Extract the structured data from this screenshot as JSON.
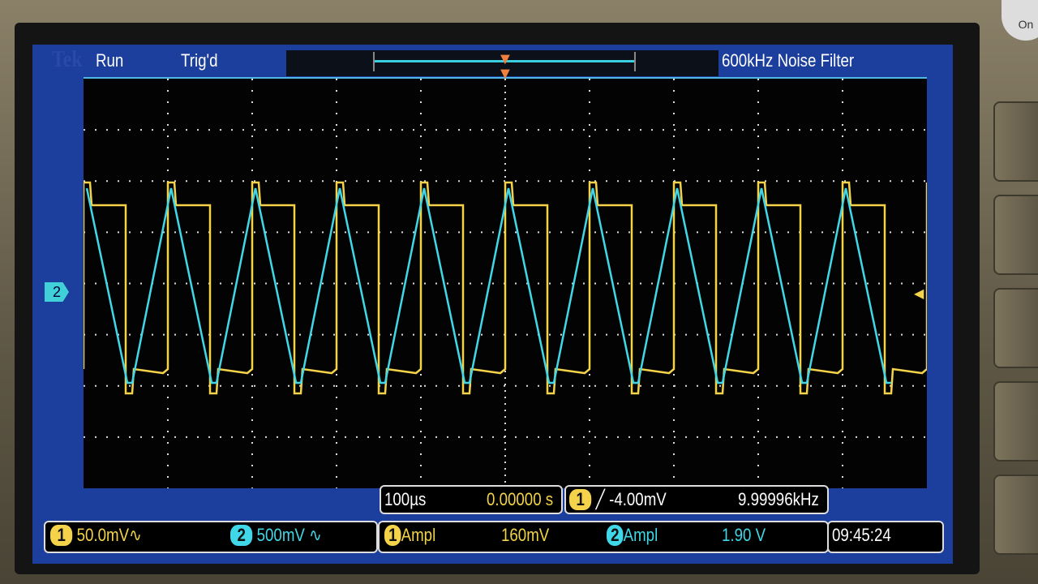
{
  "header": {
    "brand": "Tek",
    "run_state": "Run",
    "trigger_state": "Trig'd",
    "filter": "600kHz  Noise Filter"
  },
  "channels": [
    {
      "id": "1",
      "scale": "50.0mV",
      "coupling_icon": "ac-wave-icon",
      "color": "#f4d34a"
    },
    {
      "id": "2",
      "scale": "500mV",
      "coupling_icon": "ac-wave-icon",
      "color": "#40d8e8"
    }
  ],
  "timebase": {
    "scale": "100µs",
    "position": "0.00000 s"
  },
  "trigger": {
    "source": "1",
    "slope_icon": "rising-edge-icon",
    "level": "-4.00mV",
    "frequency": "9.99996kHz",
    "slope_glyph": "╱"
  },
  "measurements": [
    {
      "channel": "1",
      "name": "Ampl",
      "value": "160mV"
    },
    {
      "channel": "2",
      "name": "Ampl",
      "value": "1.90 V"
    }
  ],
  "clock": "09:45:24",
  "power_label": "On",
  "waveform": {
    "frequency_khz": 10,
    "ch1_amplitude_mv": 160,
    "ch2_amplitude_v": 1.9,
    "ch1_shape": "square",
    "ch2_shape": "triangle"
  }
}
